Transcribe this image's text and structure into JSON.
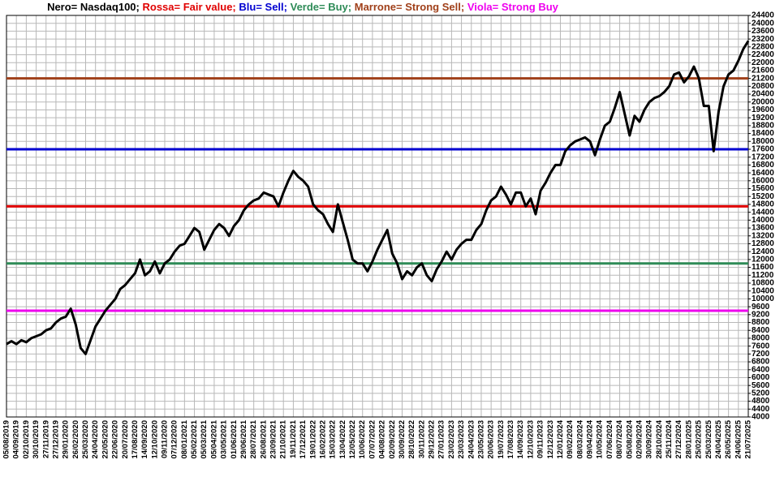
{
  "chart_data": {
    "type": "line",
    "title_parts": [
      {
        "text": "Nero= Nasdaq100;",
        "color": "#000000"
      },
      {
        "text": "Rossa= Fair value;",
        "color": "#e00000"
      },
      {
        "text": "Blu= Sell;",
        "color": "#0000d0"
      },
      {
        "text": "Verde= Buy;",
        "color": "#2e8b57"
      },
      {
        "text": "Marrone= Strong Sell;",
        "color": "#a0401a"
      },
      {
        "text": "Viola= Strong Buy",
        "color": "#ee00ee"
      }
    ],
    "categories": [
      "05/08/2019",
      null,
      "04/09/2019",
      null,
      "02/10/2019",
      null,
      "30/10/2019",
      null,
      "27/11/2019",
      null,
      "27/12/2019",
      null,
      "29/01/2020",
      null,
      "26/02/2020",
      null,
      "25/03/2020",
      null,
      "24/04/2020",
      null,
      "22/05/2020",
      null,
      "22/06/2020",
      null,
      "20/07/2020",
      null,
      "17/08/2020",
      null,
      "14/09/2020",
      null,
      "12/10/2020",
      null,
      "09/11/2020",
      null,
      "07/12/2020",
      null,
      "08/01/2021",
      null,
      "05/02/2021",
      null,
      "05/03/2021",
      null,
      "05/04/2021",
      null,
      "03/05/2021",
      null,
      "01/06/2021",
      null,
      "29/06/2021",
      null,
      "28/07/2021",
      null,
      "26/08/2021",
      null,
      "23/09/2021",
      null,
      "21/10/2021",
      null,
      "19/11/2021",
      null,
      "17/12/2021",
      null,
      "19/01/2022",
      null,
      "16/02/2022",
      null,
      "15/03/2022",
      null,
      "13/04/2022",
      null,
      "12/05/2022",
      null,
      "10/06/2022",
      null,
      "07/07/2022",
      null,
      "04/08/2022",
      null,
      "02/09/2022",
      null,
      "30/09/2022",
      null,
      "28/10/2022",
      null,
      "30/11/2022",
      null,
      "29/12/2022",
      null,
      "27/01/2023",
      null,
      "23/02/2023",
      null,
      "23/03/2023",
      null,
      "24/04/2023",
      null,
      "23/05/2023",
      null,
      "20/06/2023",
      null,
      "19/07/2023",
      null,
      "17/08/2023",
      null,
      "14/09/2023",
      null,
      "12/10/2023",
      null,
      "09/11/2023",
      null,
      "12/12/2023",
      null,
      "12/01/2024",
      null,
      "09/02/2024",
      null,
      "08/03/2024",
      null,
      "09/04/2024",
      null,
      "10/05/2024",
      null,
      "07/06/2024",
      null,
      "08/07/2024",
      null,
      "05/08/2024",
      null,
      "02/09/2024",
      null,
      "30/09/2024",
      null,
      "28/10/2024",
      null,
      "25/11/2024",
      null,
      "27/12/2024",
      null,
      "28/01/2025",
      null,
      "25/02/2025",
      null,
      "25/03/2025",
      null,
      "24/04/2025",
      null,
      "26/05/2025",
      null,
      "24/06/2025",
      null,
      "21/07/2025"
    ],
    "series": [
      {
        "name": "Nasdaq100",
        "color": "#000000",
        "values": [
          7700,
          7850,
          7700,
          7900,
          7800,
          8000,
          8100,
          8200,
          8400,
          8500,
          8800,
          9000,
          9100,
          9500,
          8700,
          7500,
          7200,
          7900,
          8600,
          9000,
          9400,
          9700,
          10000,
          10500,
          10700,
          11000,
          11300,
          12000,
          11200,
          11400,
          11900,
          11300,
          11800,
          12000,
          12400,
          12700,
          12800,
          13200,
          13600,
          13400,
          12500,
          13000,
          13500,
          13800,
          13600,
          13200,
          13700,
          14000,
          14500,
          14800,
          15000,
          15100,
          15400,
          15300,
          15200,
          14700,
          15400,
          16000,
          16500,
          16200,
          16000,
          15700,
          14800,
          14500,
          14300,
          13800,
          13400,
          14800,
          13900,
          13000,
          12000,
          11800,
          11800,
          11400,
          11900,
          12500,
          13000,
          13500,
          12300,
          11800,
          11000,
          11400,
          11200,
          11600,
          11800,
          11200,
          10900,
          11500,
          11900,
          12400,
          12000,
          12500,
          12800,
          13000,
          13000,
          13500,
          13800,
          14500,
          15000,
          15200,
          15700,
          15300,
          14800,
          15400,
          15400,
          14700,
          15100,
          14300,
          15500,
          15900,
          16400,
          16800,
          16800,
          17500,
          17800,
          18000,
          18100,
          18200,
          18000,
          17300,
          18100,
          18800,
          19000,
          19700,
          20500,
          19400,
          18300,
          19300,
          19000,
          19600,
          20000,
          20200,
          20300,
          20500,
          20800,
          21400,
          21500,
          21000,
          21300,
          21800,
          21200,
          19800,
          19800,
          17500,
          19500,
          20800,
          21400,
          21600,
          22100,
          22700,
          23100
        ]
      }
    ],
    "reference_lines": [
      {
        "value": 21200,
        "color": "#a0401a"
      },
      {
        "value": 17600,
        "color": "#0000d0"
      },
      {
        "value": 14700,
        "color": "#e00000"
      },
      {
        "value": 11800,
        "color": "#2e8b57"
      },
      {
        "value": 9400,
        "color": "#ee00ee"
      }
    ],
    "ylim": [
      4000,
      24400
    ],
    "yticks": [
      4000,
      4400,
      4800,
      5200,
      5600,
      6000,
      6400,
      6800,
      7200,
      7600,
      8000,
      8400,
      8800,
      9200,
      9600,
      10000,
      10400,
      10800,
      11200,
      11600,
      12000,
      12400,
      12800,
      13200,
      13600,
      14000,
      14400,
      14800,
      15200,
      15600,
      16000,
      16400,
      16800,
      17200,
      17600,
      18000,
      18400,
      18800,
      19200,
      19600,
      20000,
      20400,
      20800,
      21200,
      21600,
      22000,
      22400,
      22800,
      23200,
      23600,
      24000,
      24400
    ],
    "grid": true
  }
}
